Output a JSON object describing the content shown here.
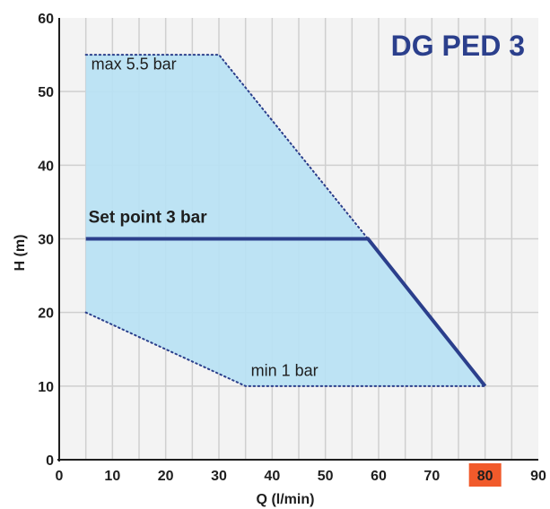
{
  "chart_data": {
    "type": "area",
    "title": "DG PED 3",
    "xlabel": "Q (l/min)",
    "ylabel": "H (m)",
    "xlim": [
      0,
      90
    ],
    "ylim": [
      0,
      60
    ],
    "x_ticks": [
      0,
      10,
      20,
      30,
      40,
      50,
      60,
      70,
      80,
      90
    ],
    "y_ticks": [
      0,
      10,
      20,
      30,
      40,
      50,
      60
    ],
    "highlight_x_tick": 80,
    "grid": true,
    "operating_region": {
      "points": [
        [
          5,
          55
        ],
        [
          30,
          55
        ],
        [
          80,
          10
        ],
        [
          35,
          10
        ],
        [
          5,
          20
        ]
      ]
    },
    "series": [
      {
        "name": "max 5.5 bar",
        "style": "dotted",
        "x": [
          5,
          30,
          58
        ],
        "y": [
          55,
          55,
          30
        ]
      },
      {
        "name": "min 1 bar",
        "style": "dotted",
        "x": [
          5,
          35,
          80
        ],
        "y": [
          20,
          10,
          10
        ]
      },
      {
        "name": "Set point 3 bar",
        "style": "solid",
        "x": [
          5,
          58,
          80
        ],
        "y": [
          30,
          30,
          10
        ]
      }
    ],
    "annotations": [
      {
        "text": "max 5.5 bar",
        "x": 6,
        "y": 53
      },
      {
        "text": "Set point 3 bar",
        "x": 5.5,
        "y": 32.2
      },
      {
        "text": "min 1 bar",
        "x": 36,
        "y": 11.4
      }
    ]
  },
  "colors": {
    "background": "#ffffff",
    "plot_background": "#f3f3f3",
    "grid": "#cfcfcf",
    "region_fill": "#b9e2f4",
    "set_point_line": "#2b3f8c",
    "dotted_line": "#2b3f8c",
    "title": "#2b3f8c",
    "highlight_tick_bg": "#f15a2b",
    "highlight_tick_text": "#ffffff",
    "axis": "#1e1e1e"
  }
}
